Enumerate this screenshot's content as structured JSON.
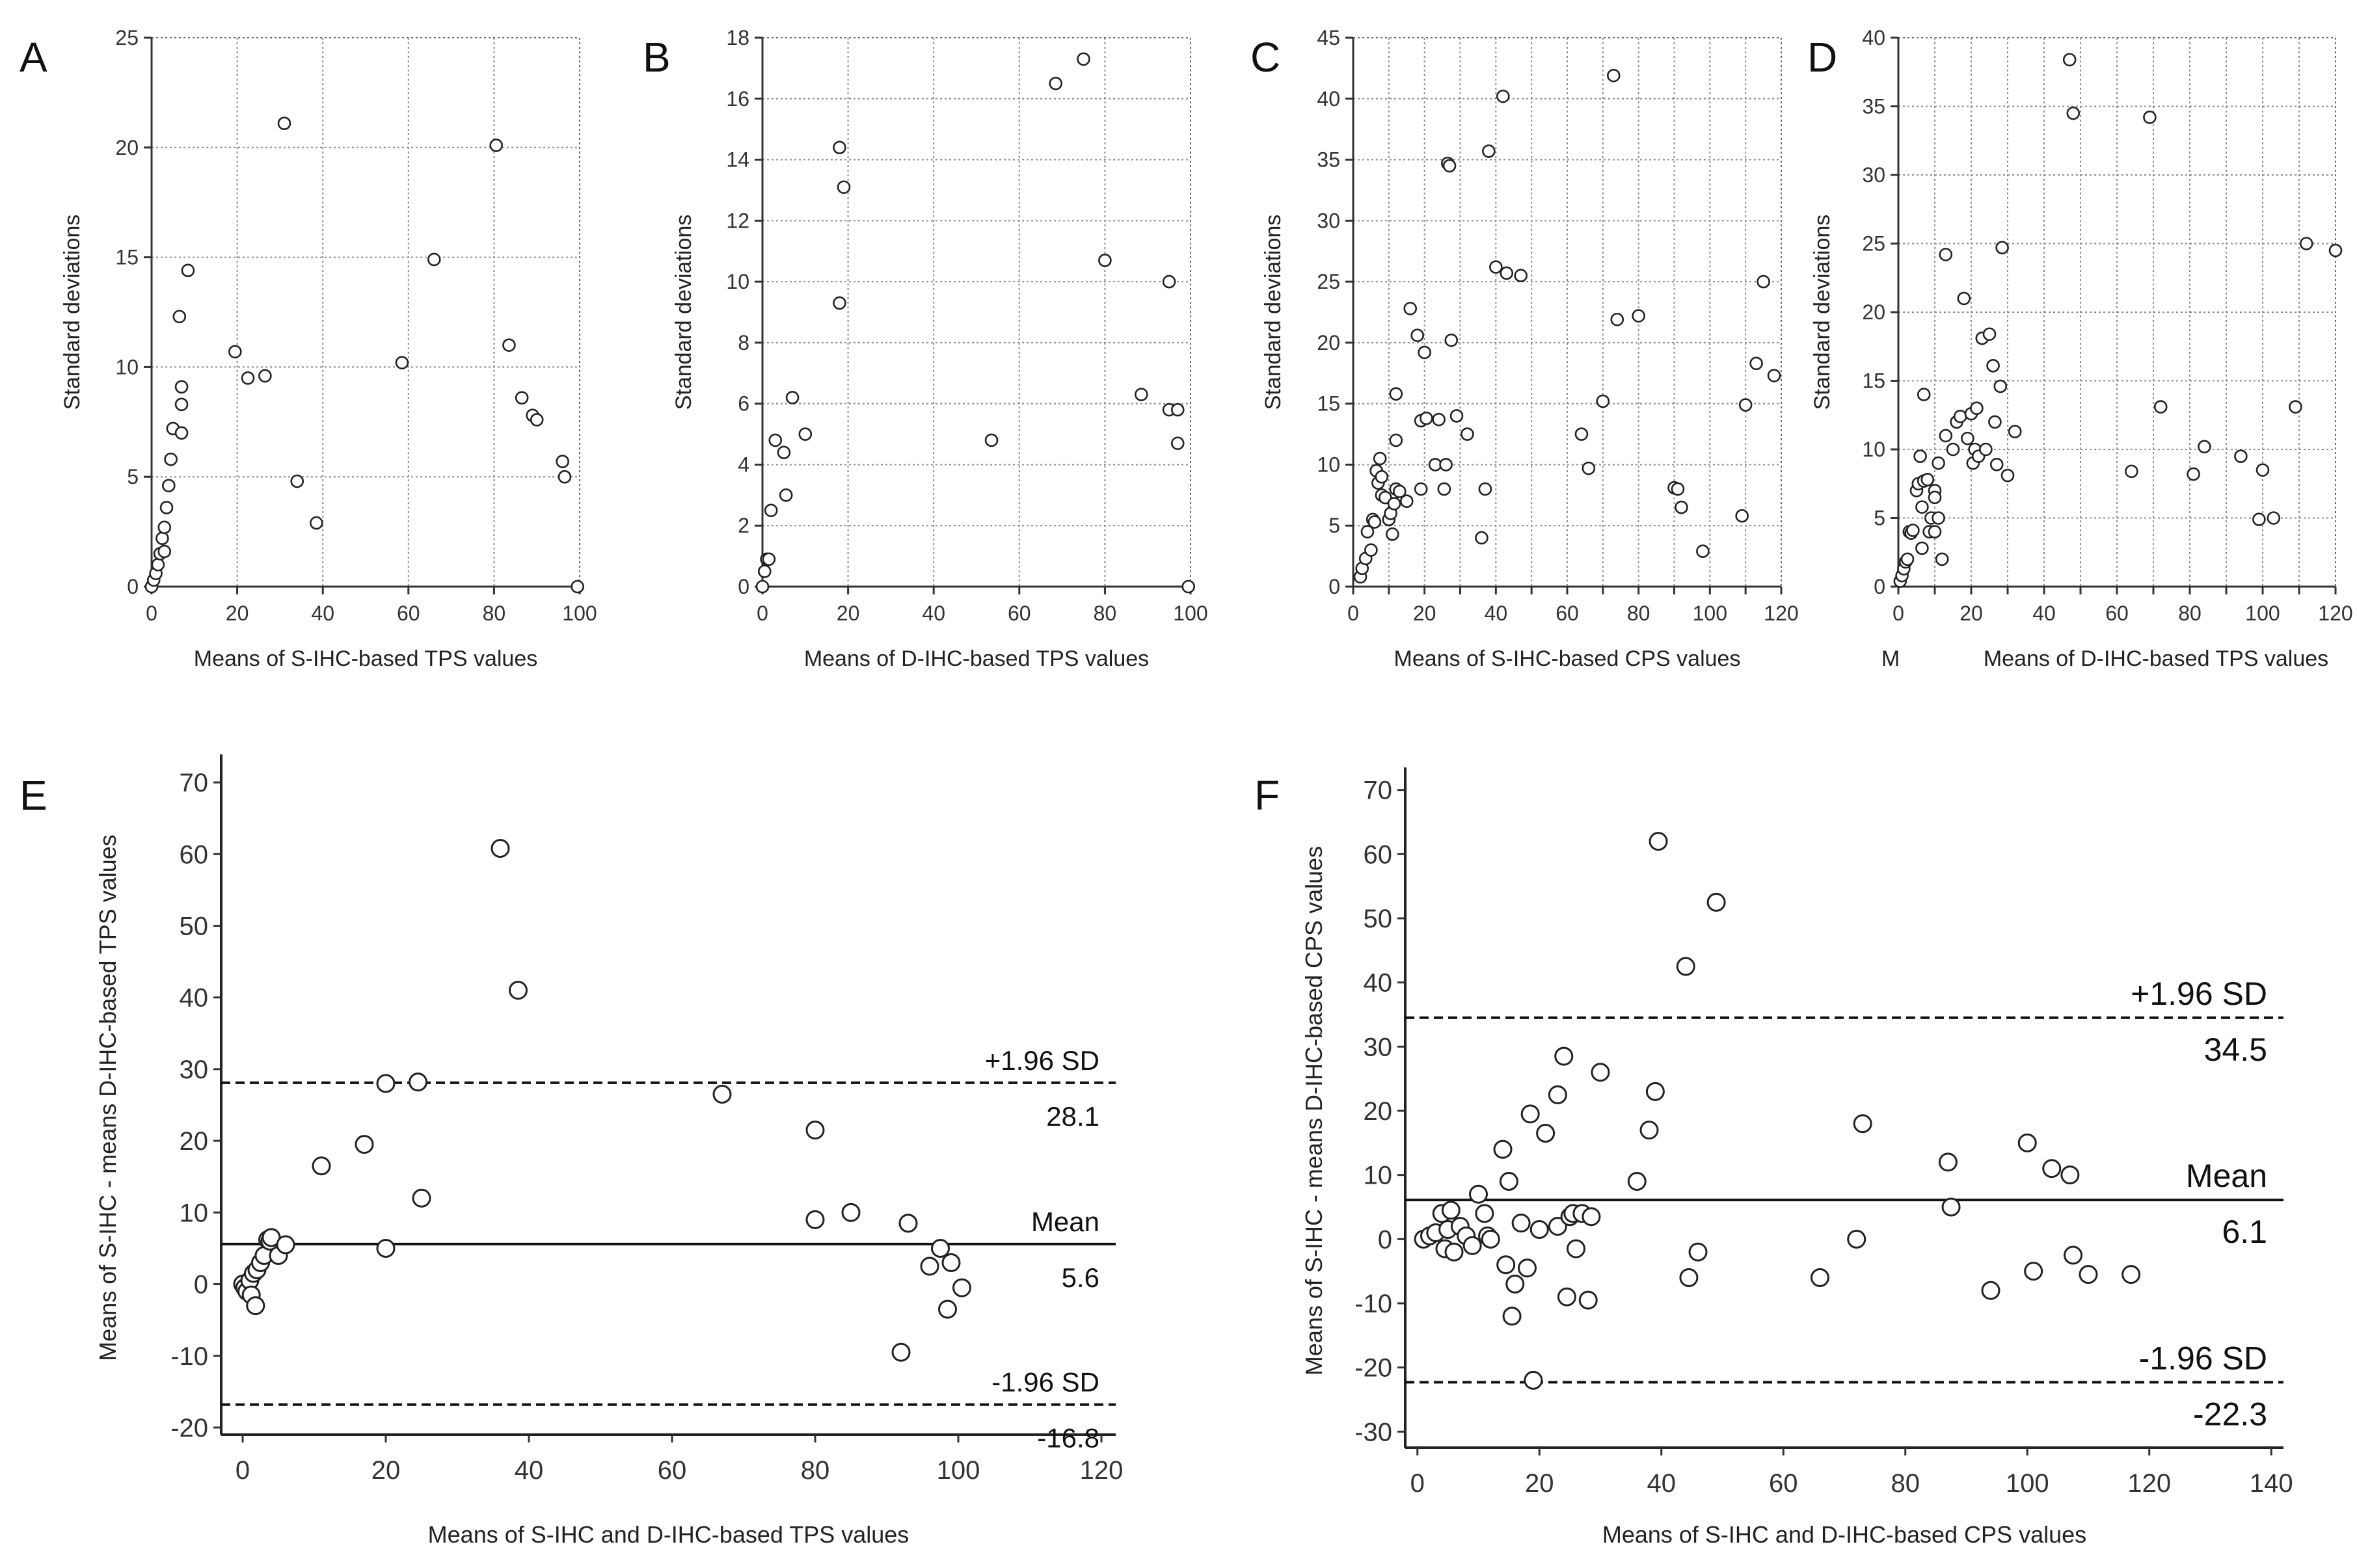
{
  "figure": {
    "panel_letters": [
      "A",
      "B",
      "C",
      "D",
      "E",
      "F"
    ],
    "stray_glyph_d": "M"
  },
  "chart_data": [
    {
      "panel": "A",
      "type": "scatter",
      "xlabel": "Means of S-IHC-based TPS values",
      "ylabel": "Standard deviations",
      "xlim": [
        0,
        100
      ],
      "ylim": [
        0,
        25
      ],
      "xticks": [
        0,
        20,
        40,
        60,
        80,
        100
      ],
      "yticks": [
        0,
        5,
        10,
        15,
        20,
        25
      ],
      "grid": true,
      "points": [
        [
          0,
          0
        ],
        [
          0.5,
          0.3
        ],
        [
          1,
          0.6
        ],
        [
          1.5,
          1
        ],
        [
          2,
          1.5
        ],
        [
          2.5,
          2.2
        ],
        [
          3,
          2.7
        ],
        [
          3.5,
          3.6
        ],
        [
          4,
          4.6
        ],
        [
          4.5,
          5.8
        ],
        [
          5,
          7.2
        ],
        [
          7,
          7
        ],
        [
          7,
          8.3
        ],
        [
          7,
          9.1
        ],
        [
          6.5,
          12.3
        ],
        [
          8.5,
          14.4
        ],
        [
          3,
          1.6
        ],
        [
          19.5,
          10.7
        ],
        [
          22.5,
          9.5
        ],
        [
          26.5,
          9.6
        ],
        [
          31,
          21.1
        ],
        [
          34,
          4.8
        ],
        [
          38.5,
          2.9
        ],
        [
          58.5,
          10.2
        ],
        [
          66,
          14.9
        ],
        [
          80.5,
          20.1
        ],
        [
          83.5,
          11
        ],
        [
          86.5,
          8.6
        ],
        [
          89,
          7.8
        ],
        [
          90,
          7.6
        ],
        [
          96,
          5.7
        ],
        [
          96.5,
          5
        ],
        [
          99.5,
          0
        ]
      ]
    },
    {
      "panel": "B",
      "type": "scatter",
      "xlabel": "Means of D-IHC-based TPS values",
      "ylabel": "Standard deviations",
      "xlim": [
        0,
        100
      ],
      "ylim": [
        0,
        18
      ],
      "xticks": [
        0,
        20,
        40,
        60,
        80,
        100
      ],
      "yticks": [
        0,
        2,
        4,
        6,
        8,
        10,
        12,
        14,
        16,
        18
      ],
      "grid": true,
      "points": [
        [
          0,
          0
        ],
        [
          0.5,
          0.5
        ],
        [
          1,
          0.9
        ],
        [
          1.5,
          0.9
        ],
        [
          2,
          2.5
        ],
        [
          3,
          4.8
        ],
        [
          5,
          4.4
        ],
        [
          5.5,
          3
        ],
        [
          7,
          6.2
        ],
        [
          10,
          5
        ],
        [
          18,
          9.3
        ],
        [
          18,
          14.4
        ],
        [
          19,
          13.1
        ],
        [
          53.5,
          4.8
        ],
        [
          68.5,
          16.5
        ],
        [
          75,
          17.3
        ],
        [
          80,
          10.7
        ],
        [
          88.5,
          6.3
        ],
        [
          95,
          10
        ],
        [
          95,
          5.8
        ],
        [
          97,
          5.8
        ],
        [
          97,
          4.7
        ],
        [
          99.5,
          0
        ]
      ]
    },
    {
      "panel": "C",
      "type": "scatter",
      "xlabel": "Means of S-IHC-based CPS values",
      "ylabel": "Standard deviations",
      "xlim": [
        0,
        120
      ],
      "ylim": [
        0,
        45
      ],
      "xticks": [
        0,
        10,
        20,
        30,
        40,
        50,
        60,
        70,
        80,
        90,
        100,
        110,
        120
      ],
      "xtick_labels": [
        "0",
        "",
        "20",
        "",
        "40",
        "",
        "60",
        "",
        "80",
        "",
        "100",
        "",
        "120"
      ],
      "yticks": [
        0,
        5,
        10,
        15,
        20,
        25,
        30,
        35,
        40,
        45
      ],
      "grid": true,
      "points": [
        [
          2,
          0.8
        ],
        [
          2.5,
          1.5
        ],
        [
          3.5,
          2.3
        ],
        [
          4,
          4.5
        ],
        [
          5,
          3
        ],
        [
          5.5,
          5.5
        ],
        [
          6,
          5.3
        ],
        [
          6.5,
          9.5
        ],
        [
          7,
          8.5
        ],
        [
          7.5,
          10.5
        ],
        [
          8,
          7.5
        ],
        [
          8,
          9
        ],
        [
          9,
          7.3
        ],
        [
          10,
          5.5
        ],
        [
          10.5,
          6
        ],
        [
          11,
          4.3
        ],
        [
          11.5,
          6.8
        ],
        [
          12,
          8
        ],
        [
          12,
          15.8
        ],
        [
          12,
          12
        ],
        [
          13,
          7.8
        ],
        [
          15,
          7
        ],
        [
          16,
          22.8
        ],
        [
          18,
          20.6
        ],
        [
          19,
          13.6
        ],
        [
          19,
          8
        ],
        [
          20,
          19.2
        ],
        [
          20.5,
          13.8
        ],
        [
          23,
          10
        ],
        [
          24,
          13.7
        ],
        [
          25.5,
          8
        ],
        [
          26,
          10
        ],
        [
          26.5,
          34.7
        ],
        [
          27,
          34.5
        ],
        [
          27.5,
          20.2
        ],
        [
          29,
          14
        ],
        [
          32,
          12.5
        ],
        [
          36,
          4
        ],
        [
          37,
          8
        ],
        [
          38,
          35.7
        ],
        [
          40,
          26.2
        ],
        [
          42,
          40.2
        ],
        [
          43,
          25.7
        ],
        [
          47,
          25.5
        ],
        [
          64,
          12.5
        ],
        [
          66,
          9.7
        ],
        [
          70,
          15.2
        ],
        [
          73,
          41.9
        ],
        [
          74,
          21.9
        ],
        [
          80,
          22.2
        ],
        [
          90,
          8.1
        ],
        [
          91,
          8
        ],
        [
          92,
          6.5
        ],
        [
          98,
          2.9
        ],
        [
          109,
          5.8
        ],
        [
          110,
          14.9
        ],
        [
          113,
          18.3
        ],
        [
          115,
          25
        ],
        [
          118,
          17.3
        ]
      ]
    },
    {
      "panel": "D",
      "type": "scatter",
      "xlabel": "Means of D-IHC-based TPS values",
      "ylabel": "Standard deviations",
      "xlim": [
        0,
        120
      ],
      "ylim": [
        0,
        40
      ],
      "xticks": [
        0,
        10,
        20,
        30,
        40,
        50,
        60,
        70,
        80,
        90,
        100,
        110,
        120
      ],
      "xtick_labels": [
        "0",
        "",
        "20",
        "",
        "40",
        "",
        "60",
        "",
        "80",
        "",
        "100",
        "",
        "120"
      ],
      "yticks": [
        0,
        5,
        10,
        15,
        20,
        25,
        30,
        35,
        40
      ],
      "grid": true,
      "points": [
        [
          0.5,
          0.4
        ],
        [
          1,
          0.8
        ],
        [
          1.5,
          1.3
        ],
        [
          2,
          1.8
        ],
        [
          2.5,
          2
        ],
        [
          3,
          4
        ],
        [
          3.5,
          3.9
        ],
        [
          4,
          4.1
        ],
        [
          5,
          7
        ],
        [
          5.5,
          7.5
        ],
        [
          6,
          9.5
        ],
        [
          6.5,
          2.8
        ],
        [
          6.5,
          5.8
        ],
        [
          7,
          7.7
        ],
        [
          7,
          14
        ],
        [
          8,
          7.8
        ],
        [
          8.5,
          4
        ],
        [
          9,
          5
        ],
        [
          10,
          7
        ],
        [
          10,
          6.5
        ],
        [
          10,
          4
        ],
        [
          11,
          5
        ],
        [
          11,
          9
        ],
        [
          12,
          2
        ],
        [
          13,
          24.2
        ],
        [
          13,
          11
        ],
        [
          15,
          10
        ],
        [
          16,
          12
        ],
        [
          17,
          12.4
        ],
        [
          18,
          21
        ],
        [
          19,
          10.8
        ],
        [
          20,
          12.6
        ],
        [
          20.5,
          9
        ],
        [
          21,
          10
        ],
        [
          21.5,
          13
        ],
        [
          22,
          9.5
        ],
        [
          23,
          18.1
        ],
        [
          24,
          10
        ],
        [
          25,
          18.4
        ],
        [
          26,
          16.1
        ],
        [
          26.5,
          12
        ],
        [
          27,
          8.9
        ],
        [
          28,
          14.6
        ],
        [
          28.5,
          24.7
        ],
        [
          30,
          8.1
        ],
        [
          32,
          11.3
        ],
        [
          47,
          38.4
        ],
        [
          48,
          34.5
        ],
        [
          64,
          8.4
        ],
        [
          69,
          34.2
        ],
        [
          72,
          13.1
        ],
        [
          81,
          8.2
        ],
        [
          84,
          10.2
        ],
        [
          94,
          9.5
        ],
        [
          99,
          4.9
        ],
        [
          100,
          8.5
        ],
        [
          103,
          5
        ],
        [
          109,
          13.1
        ],
        [
          112,
          25
        ],
        [
          120,
          24.5
        ]
      ]
    },
    {
      "panel": "E",
      "type": "scatter",
      "subtype": "bland-altman",
      "xlabel": "Means of S-IHC and D-IHC-based TPS values",
      "ylabel": "Means of S-IHC - means D-IHC-based TPS values",
      "xlim": [
        -3,
        122
      ],
      "ylim": [
        -21,
        73
      ],
      "xticks": [
        0,
        20,
        40,
        60,
        80,
        100,
        120
      ],
      "yticks": [
        -20,
        -10,
        0,
        10,
        20,
        30,
        40,
        50,
        60,
        70
      ],
      "grid": false,
      "reference_lines": [
        {
          "name": "upper-loa",
          "label": "+1.96 SD",
          "value_label": "28.1",
          "y": 28.1,
          "style": "dashed"
        },
        {
          "name": "mean",
          "label": "Mean",
          "value_label": "5.6",
          "y": 5.6,
          "style": "solid"
        },
        {
          "name": "lower-loa",
          "label": "-1.96 SD",
          "value_label": "-16.8",
          "y": -16.8,
          "style": "dashed"
        }
      ],
      "points": [
        [
          0,
          0
        ],
        [
          0.3,
          -0.5
        ],
        [
          0.6,
          -1
        ],
        [
          1,
          0.5
        ],
        [
          1.2,
          -1.5
        ],
        [
          1.5,
          1.5
        ],
        [
          1.8,
          -3
        ],
        [
          2,
          2
        ],
        [
          2.5,
          3
        ],
        [
          3,
          4
        ],
        [
          3.5,
          6.2
        ],
        [
          3.8,
          6
        ],
        [
          4,
          6.5
        ],
        [
          5,
          4
        ],
        [
          6,
          5.5
        ],
        [
          11,
          16.5
        ],
        [
          17,
          19.5
        ],
        [
          20,
          28
        ],
        [
          20,
          5
        ],
        [
          24.5,
          28.2
        ],
        [
          25,
          12
        ],
        [
          36,
          60.8
        ],
        [
          38.5,
          41
        ],
        [
          67,
          26.5
        ],
        [
          80,
          21.5
        ],
        [
          80,
          9
        ],
        [
          85,
          10
        ],
        [
          93,
          8.5
        ],
        [
          92,
          -9.5
        ],
        [
          96,
          2.5
        ],
        [
          97.5,
          5
        ],
        [
          98.5,
          -3.5
        ],
        [
          99,
          3
        ],
        [
          100.5,
          -0.5
        ]
      ]
    },
    {
      "panel": "F",
      "type": "scatter",
      "subtype": "bland-altman",
      "xlabel": "Means of S-IHC and D-IHC-based CPS values",
      "ylabel": "Means of S-IHC - means D-IHC-based CPS values",
      "xlim": [
        -2,
        142
      ],
      "ylim": [
        -32.5,
        72.5
      ],
      "xticks": [
        0,
        20,
        40,
        60,
        80,
        100,
        120,
        140
      ],
      "yticks": [
        -30,
        -20,
        -10,
        0,
        10,
        20,
        30,
        40,
        50,
        60,
        70
      ],
      "grid": false,
      "reference_lines": [
        {
          "name": "upper-loa",
          "label": "+1.96 SD",
          "value_label": "34.5",
          "y": 34.5,
          "style": "dashed"
        },
        {
          "name": "mean",
          "label": "Mean",
          "value_label": "6.1",
          "y": 6.1,
          "style": "solid"
        },
        {
          "name": "lower-loa",
          "label": "-1.96 SD",
          "value_label": "-22.3",
          "y": -22.3,
          "style": "dashed"
        }
      ],
      "points": [
        [
          1,
          0
        ],
        [
          2,
          0.5
        ],
        [
          3,
          1
        ],
        [
          4,
          4
        ],
        [
          4.5,
          -1.5
        ],
        [
          5,
          1.5
        ],
        [
          5.5,
          4.5
        ],
        [
          6,
          -2
        ],
        [
          7,
          2
        ],
        [
          8,
          0.5
        ],
        [
          9,
          -1
        ],
        [
          10,
          7
        ],
        [
          11,
          4
        ],
        [
          11.5,
          0.5
        ],
        [
          12,
          0
        ],
        [
          14,
          14
        ],
        [
          14.5,
          -4
        ],
        [
          15,
          9
        ],
        [
          15.5,
          -12
        ],
        [
          16,
          -7
        ],
        [
          17,
          2.5
        ],
        [
          18,
          -4.5
        ],
        [
          18.5,
          19.5
        ],
        [
          19,
          -22
        ],
        [
          20,
          1.5
        ],
        [
          21,
          16.5
        ],
        [
          23,
          2
        ],
        [
          23,
          22.5
        ],
        [
          24,
          28.5
        ],
        [
          24.5,
          -9
        ],
        [
          25,
          3.5
        ],
        [
          25.5,
          4
        ],
        [
          26,
          -1.5
        ],
        [
          27,
          4
        ],
        [
          28,
          -9.5
        ],
        [
          28.5,
          3.5
        ],
        [
          30,
          26
        ],
        [
          36,
          9
        ],
        [
          38,
          17
        ],
        [
          39,
          23
        ],
        [
          39.5,
          62
        ],
        [
          44,
          42.5
        ],
        [
          44.5,
          -6
        ],
        [
          46,
          -2
        ],
        [
          49,
          52.5
        ],
        [
          66,
          -6
        ],
        [
          72,
          0
        ],
        [
          73,
          18
        ],
        [
          87,
          12
        ],
        [
          87.5,
          5
        ],
        [
          94,
          -8
        ],
        [
          100,
          15
        ],
        [
          101,
          -5
        ],
        [
          104,
          11
        ],
        [
          107,
          10
        ],
        [
          107.5,
          -2.5
        ],
        [
          110,
          -5.5
        ],
        [
          117,
          -5.5
        ]
      ]
    }
  ]
}
